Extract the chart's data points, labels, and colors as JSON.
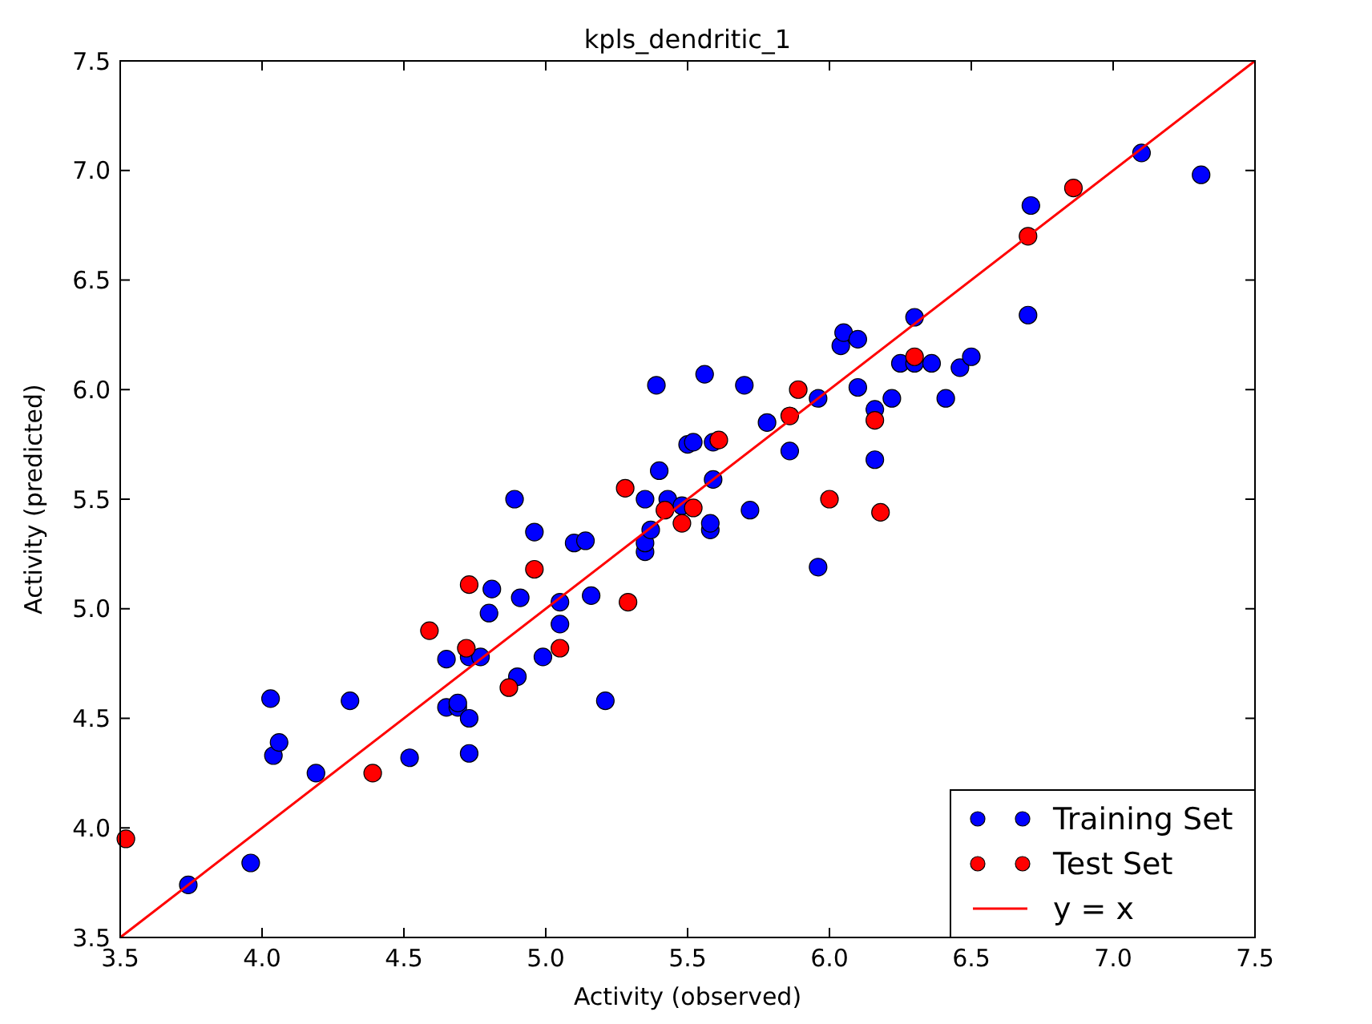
{
  "chart_data": {
    "type": "scatter",
    "title": "kpls_dendritic_1",
    "xlabel": "Activity (observed)",
    "ylabel": "Activity (predicted)",
    "xlim": [
      3.5,
      7.5
    ],
    "ylim": [
      3.5,
      7.5
    ],
    "xticks": [
      3.5,
      {
        "value": 4,
        "label": "4.0"
      },
      {
        "value": 4.5,
        "label": "4.5"
      },
      {
        "value": 5,
        "label": "5.0"
      },
      5.5,
      {
        "value": 6,
        "label": "6.0"
      },
      6.5,
      {
        "value": 7,
        "label": "7.0"
      },
      7.5
    ],
    "yticks": [
      3.5,
      {
        "value": 4,
        "label": "4.0"
      },
      4.5,
      {
        "value": 5,
        "label": "5.0"
      },
      5.5,
      {
        "value": 6,
        "label": "6.0"
      },
      6.5,
      {
        "value": 7,
        "label": "7.0"
      },
      7.5
    ],
    "grid": false,
    "legend": "bottom right",
    "marker": "circle",
    "series": [
      {
        "name": "Training Set",
        "color": "#0000ff",
        "x": [
          3.74,
          3.96,
          4.03,
          4.04,
          4.06,
          4.19,
          4.31,
          4.52,
          4.65,
          4.65,
          4.69,
          4.69,
          4.73,
          4.73,
          4.73,
          4.77,
          4.8,
          4.81,
          4.89,
          4.91,
          4.9,
          4.96,
          4.99,
          5.05,
          5.05,
          5.1,
          5.14,
          5.16,
          5.21,
          5.35,
          5.35,
          5.35,
          5.37,
          5.39,
          5.4,
          5.43,
          5.48,
          5.5,
          5.52,
          5.56,
          5.58,
          5.58,
          5.59,
          5.59,
          5.7,
          5.72,
          5.78,
          5.86,
          5.96,
          5.96,
          6.04,
          6.05,
          6.1,
          6.1,
          6.16,
          6.16,
          6.22,
          6.25,
          6.3,
          6.3,
          6.36,
          6.41,
          6.46,
          6.5,
          6.7,
          6.71,
          7.1,
          7.31
        ],
        "values": [
          3.74,
          3.84,
          4.59,
          4.33,
          4.39,
          4.25,
          4.58,
          4.32,
          4.55,
          4.77,
          4.55,
          4.57,
          4.5,
          4.34,
          4.78,
          4.78,
          4.98,
          5.09,
          5.5,
          5.05,
          4.69,
          5.35,
          4.78,
          4.93,
          5.03,
          5.3,
          5.31,
          5.06,
          4.58,
          5.26,
          5.3,
          5.5,
          5.36,
          6.02,
          5.63,
          5.5,
          5.47,
          5.75,
          5.76,
          6.07,
          5.36,
          5.39,
          5.59,
          5.76,
          6.02,
          5.45,
          5.85,
          5.72,
          5.19,
          5.96,
          6.2,
          6.26,
          6.23,
          6.01,
          5.91,
          5.68,
          5.96,
          6.12,
          6.33,
          6.12,
          6.12,
          5.96,
          6.1,
          6.15,
          6.34,
          6.84,
          7.08,
          6.98
        ]
      },
      {
        "name": "Test Set",
        "color": "#ff0000",
        "x": [
          3.52,
          4.39,
          4.59,
          4.73,
          4.72,
          4.87,
          4.96,
          5.05,
          5.28,
          5.29,
          5.42,
          5.48,
          5.52,
          5.61,
          5.86,
          5.89,
          6.0,
          6.16,
          6.18,
          6.3,
          6.7,
          6.86
        ],
        "values": [
          3.95,
          4.25,
          4.9,
          5.11,
          4.82,
          4.64,
          5.18,
          4.82,
          5.55,
          5.03,
          5.45,
          5.39,
          5.46,
          5.77,
          5.88,
          6.0,
          5.5,
          5.86,
          5.44,
          6.15,
          6.7,
          6.92
        ]
      },
      {
        "name": "y = x",
        "color": "#ff0000",
        "type": "line",
        "marker": "none",
        "x": [
          3.5,
          7.5
        ],
        "values": [
          3.5,
          7.5
        ]
      }
    ]
  }
}
